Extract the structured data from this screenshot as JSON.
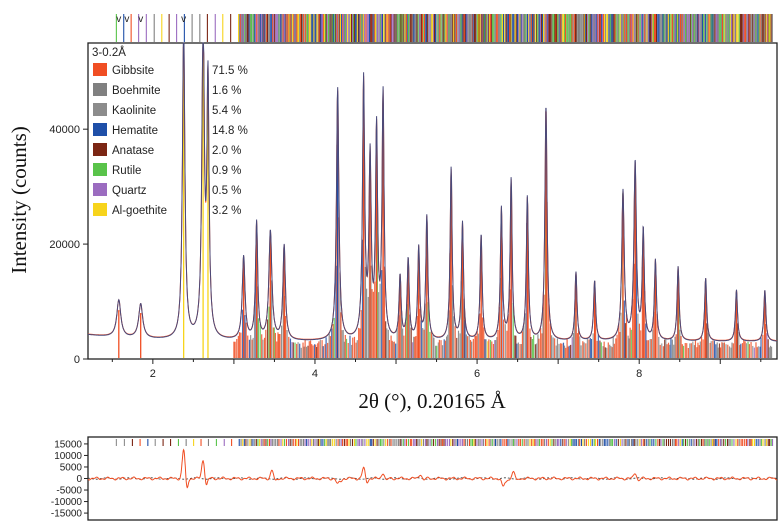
{
  "chart_data": [
    {
      "type": "line",
      "panel": "main",
      "ylabel": "Intensity (counts)",
      "xlabel": "2θ (°),  0.20165 Å",
      "xlim": [
        1.2,
        9.7
      ],
      "ylim": [
        0,
        55000
      ],
      "x_ticks": [
        2,
        4,
        6,
        8
      ],
      "x_tick_labels": [
        "2",
        "4",
        "6",
        "8"
      ],
      "y_ticks": [
        0,
        20000,
        40000
      ],
      "y_tick_labels": [
        "0",
        "20000",
        "40000"
      ],
      "legend_title": "3-0.2Å",
      "legend_position": "top-left",
      "legend": [
        {
          "phase": "Gibbsite",
          "percent": "71.5 %",
          "color": "#f04e23"
        },
        {
          "phase": "Boehmite",
          "percent": "1.6 %",
          "color": "#808080"
        },
        {
          "phase": "Kaolinite",
          "percent": "5.4 %",
          "color": "#8c8c8c"
        },
        {
          "phase": "Hematite",
          "percent": "14.8 %",
          "color": "#1f4fa8"
        },
        {
          "phase": "Anatase",
          "percent": "2.0 %",
          "color": "#7b2614"
        },
        {
          "phase": "Rutile",
          "percent": "0.9 %",
          "color": "#59c34a"
        },
        {
          "phase": "Quartz",
          "percent": "0.5 %",
          "color": "#9b6cc0"
        },
        {
          "phase": "Al-goethite",
          "percent": "3.2 %",
          "color": "#f7d41c"
        }
      ],
      "background": 3000,
      "peaks": [
        {
          "x": 1.58,
          "y": 6500,
          "w": 0.03
        },
        {
          "x": 1.85,
          "y": 6000,
          "w": 0.03
        },
        {
          "x": 2.38,
          "y": 55000,
          "w": 0.018
        },
        {
          "x": 2.62,
          "y": 55000,
          "w": 0.018
        },
        {
          "x": 2.68,
          "y": 44000,
          "w": 0.016
        },
        {
          "x": 3.12,
          "y": 14500,
          "w": 0.02
        },
        {
          "x": 3.28,
          "y": 20500,
          "w": 0.016
        },
        {
          "x": 3.45,
          "y": 19000,
          "w": 0.022
        },
        {
          "x": 3.62,
          "y": 16500,
          "w": 0.018
        },
        {
          "x": 4.28,
          "y": 44000,
          "w": 0.018
        },
        {
          "x": 4.6,
          "y": 45000,
          "w": 0.016
        },
        {
          "x": 4.68,
          "y": 31000,
          "w": 0.016
        },
        {
          "x": 4.76,
          "y": 36000,
          "w": 0.015
        },
        {
          "x": 4.84,
          "y": 42500,
          "w": 0.015
        },
        {
          "x": 5.05,
          "y": 11000,
          "w": 0.015
        },
        {
          "x": 5.15,
          "y": 14000,
          "w": 0.015
        },
        {
          "x": 5.28,
          "y": 16000,
          "w": 0.015
        },
        {
          "x": 5.38,
          "y": 21500,
          "w": 0.015
        },
        {
          "x": 5.68,
          "y": 30000,
          "w": 0.015
        },
        {
          "x": 5.82,
          "y": 20500,
          "w": 0.015
        },
        {
          "x": 6.05,
          "y": 18500,
          "w": 0.015
        },
        {
          "x": 6.3,
          "y": 23000,
          "w": 0.015
        },
        {
          "x": 6.42,
          "y": 28000,
          "w": 0.015
        },
        {
          "x": 6.62,
          "y": 25000,
          "w": 0.015
        },
        {
          "x": 6.85,
          "y": 41000,
          "w": 0.016
        },
        {
          "x": 7.22,
          "y": 12000,
          "w": 0.015
        },
        {
          "x": 7.45,
          "y": 10500,
          "w": 0.015
        },
        {
          "x": 7.8,
          "y": 26000,
          "w": 0.018
        },
        {
          "x": 7.95,
          "y": 31000,
          "w": 0.018
        },
        {
          "x": 8.05,
          "y": 19000,
          "w": 0.015
        },
        {
          "x": 8.2,
          "y": 14000,
          "w": 0.015
        },
        {
          "x": 8.48,
          "y": 13000,
          "w": 0.015
        },
        {
          "x": 8.82,
          "y": 11000,
          "w": 0.015
        },
        {
          "x": 9.2,
          "y": 9000,
          "w": 0.015
        },
        {
          "x": 9.55,
          "y": 9000,
          "w": 0.015
        }
      ]
    },
    {
      "type": "line",
      "panel": "residual",
      "xlim": [
        1.2,
        9.7
      ],
      "ylim": [
        -18000,
        18000
      ],
      "y_ticks": [
        15000,
        10000,
        5000,
        0,
        -5000,
        -10000,
        -15000
      ],
      "y_tick_labels": [
        "15000",
        "10000",
        "5000",
        "0",
        "-5000",
        "-10000",
        "-15000"
      ],
      "spikes": [
        {
          "x": 2.38,
          "y": 12500
        },
        {
          "x": 2.62,
          "y": 8000
        },
        {
          "x": 3.47,
          "y": 3500
        },
        {
          "x": 4.28,
          "y": -2500
        },
        {
          "x": 4.6,
          "y": 4500
        },
        {
          "x": 4.84,
          "y": 2500
        },
        {
          "x": 5.3,
          "y": 2000
        },
        {
          "x": 6.32,
          "y": -3500
        },
        {
          "x": 6.45,
          "y": 3000
        },
        {
          "x": 7.95,
          "y": 2500
        }
      ]
    }
  ]
}
